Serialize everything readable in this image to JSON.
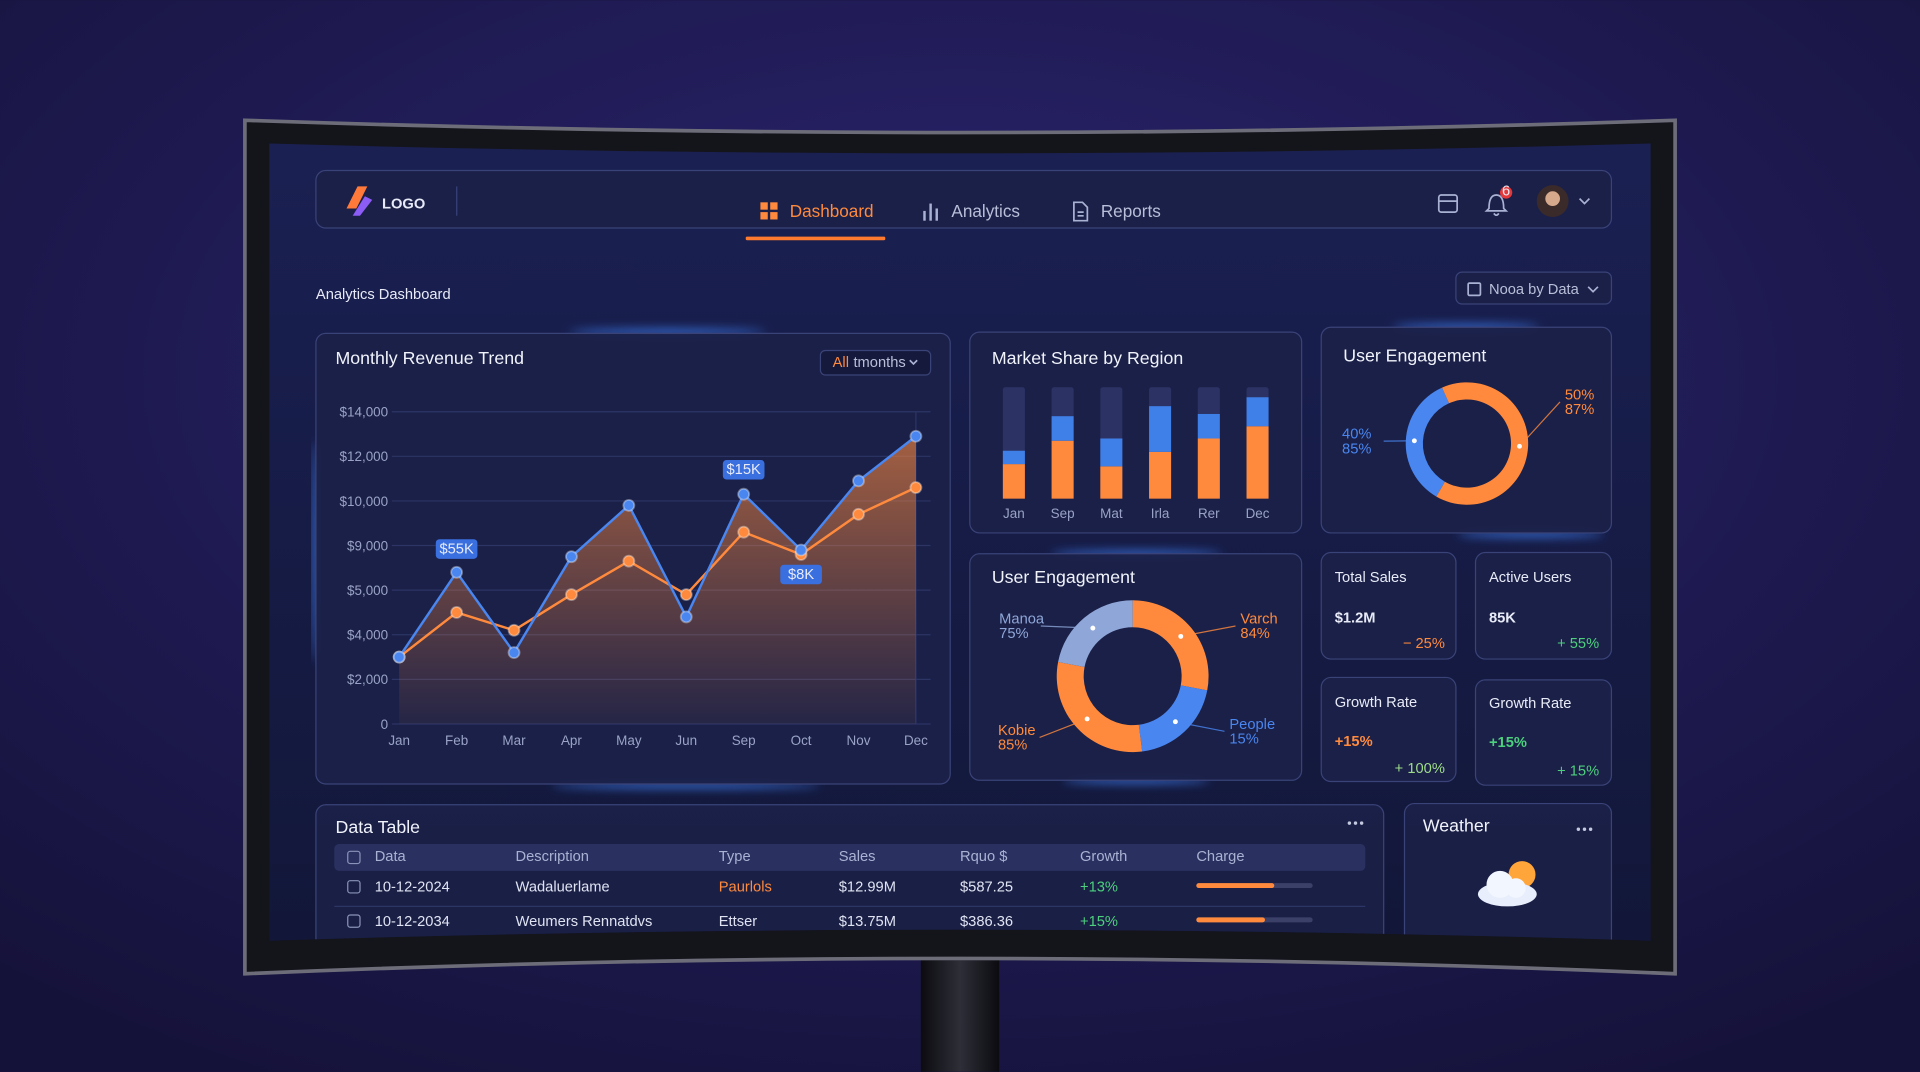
{
  "nav": {
    "logo": "LOGO",
    "tabs": [
      "Dashboard",
      "Analytics",
      "Reports"
    ],
    "badge": "6"
  },
  "header": {
    "title": "Analytics Dashboard",
    "date_filter": "Nooa by Data"
  },
  "chart_data": [
    {
      "type": "line",
      "title": "Monthly Revenue Trend",
      "filter": [
        "All",
        "tmonths"
      ],
      "categories": [
        "Jan",
        "Feb",
        "Mar",
        "Apr",
        "May",
        "Jun",
        "Sep",
        "Oct",
        "Nov",
        "Dec"
      ],
      "series": [
        {
          "color": "#4a86f0",
          "values": [
            3000,
            6600,
            3200,
            8000,
            9900,
            4400,
            10300,
            8600,
            10900,
            12900
          ]
        },
        {
          "color": "#ff8a3d",
          "values": [
            3000,
            4500,
            4100,
            4900,
            7600,
            4900,
            9300,
            8200,
            9700,
            10600
          ]
        }
      ],
      "annotations": [
        "$55K",
        "$15K",
        "$8K"
      ],
      "ylim": [
        0,
        14000
      ],
      "yticks": [
        0,
        {
          "value": 2000,
          "label": "$2,000"
        },
        {
          "value": 4000,
          "label": "$4,000"
        },
        {
          "value": 5000,
          "label": "$5,000"
        },
        {
          "value": 9000,
          "label": "$9,000"
        },
        {
          "value": 10000,
          "label": "$10,000"
        },
        {
          "value": 12000,
          "label": "$12,000"
        },
        {
          "value": 14000,
          "label": "$14,000"
        }
      ],
      "grid": true
    },
    {
      "type": "bar",
      "stacked": true,
      "title": "Market Share by Region",
      "categories": [
        "Jan",
        "Sep",
        "Mat",
        "Irla",
        "Rer",
        "Dec"
      ],
      "series": [
        {
          "color": "#ff8a3d",
          "values": [
            31,
            52,
            29,
            42,
            54,
            65
          ]
        },
        {
          "color": "#3f7fe8",
          "values": [
            12,
            22,
            25,
            41,
            22,
            26
          ]
        }
      ],
      "ylim": [
        0,
        100
      ]
    },
    {
      "type": "donut",
      "title": "User Engagement",
      "values": [
        35,
        65
      ],
      "colors": [
        "#4a86f0",
        "#ff8a3d"
      ],
      "callouts": [
        [
          "40%",
          "85%"
        ],
        [
          "50%",
          "87%"
        ]
      ]
    },
    {
      "type": "donut",
      "title": "User Engagement",
      "values": [
        28,
        20,
        30,
        22
      ],
      "colors": [
        "#ff8a3d",
        "#4a86f0",
        "#ff8a3d",
        "#8fa6d8"
      ],
      "callouts": [
        [
          "Varch",
          "84%"
        ],
        [
          "People",
          "15%"
        ],
        [
          "Kobie",
          "85%"
        ],
        [
          "Manoa",
          "75%"
        ]
      ]
    }
  ],
  "cards": [
    {
      "label": "Total Sales",
      "value": "$1.2M",
      "change": "− 25%"
    },
    {
      "label": "Active Users",
      "value": "85K",
      "change": "+ 55%"
    },
    {
      "label": "Growth Rate",
      "value": "+15%",
      "change": "+ 100%"
    },
    {
      "label": "Growth Rate",
      "value": "+15%",
      "change": "+ 15%"
    }
  ],
  "table": {
    "title": "Data Table",
    "columns": [
      "Data",
      "Description",
      "Type",
      "Sales",
      "Rquo $",
      "Growth",
      "Charge"
    ],
    "rows": [
      [
        "10-12-2024",
        "Wadaluerlame",
        "Paurlols",
        "$12.99M",
        "$587.25",
        "+13%"
      ],
      [
        "10-12-2034",
        "Weumers Rennatdvs",
        "Ettser",
        "$13.75M",
        "$386.36",
        "+15%"
      ]
    ],
    "charge": [
      67,
      59
    ]
  },
  "weather": {
    "title": "Weather"
  }
}
